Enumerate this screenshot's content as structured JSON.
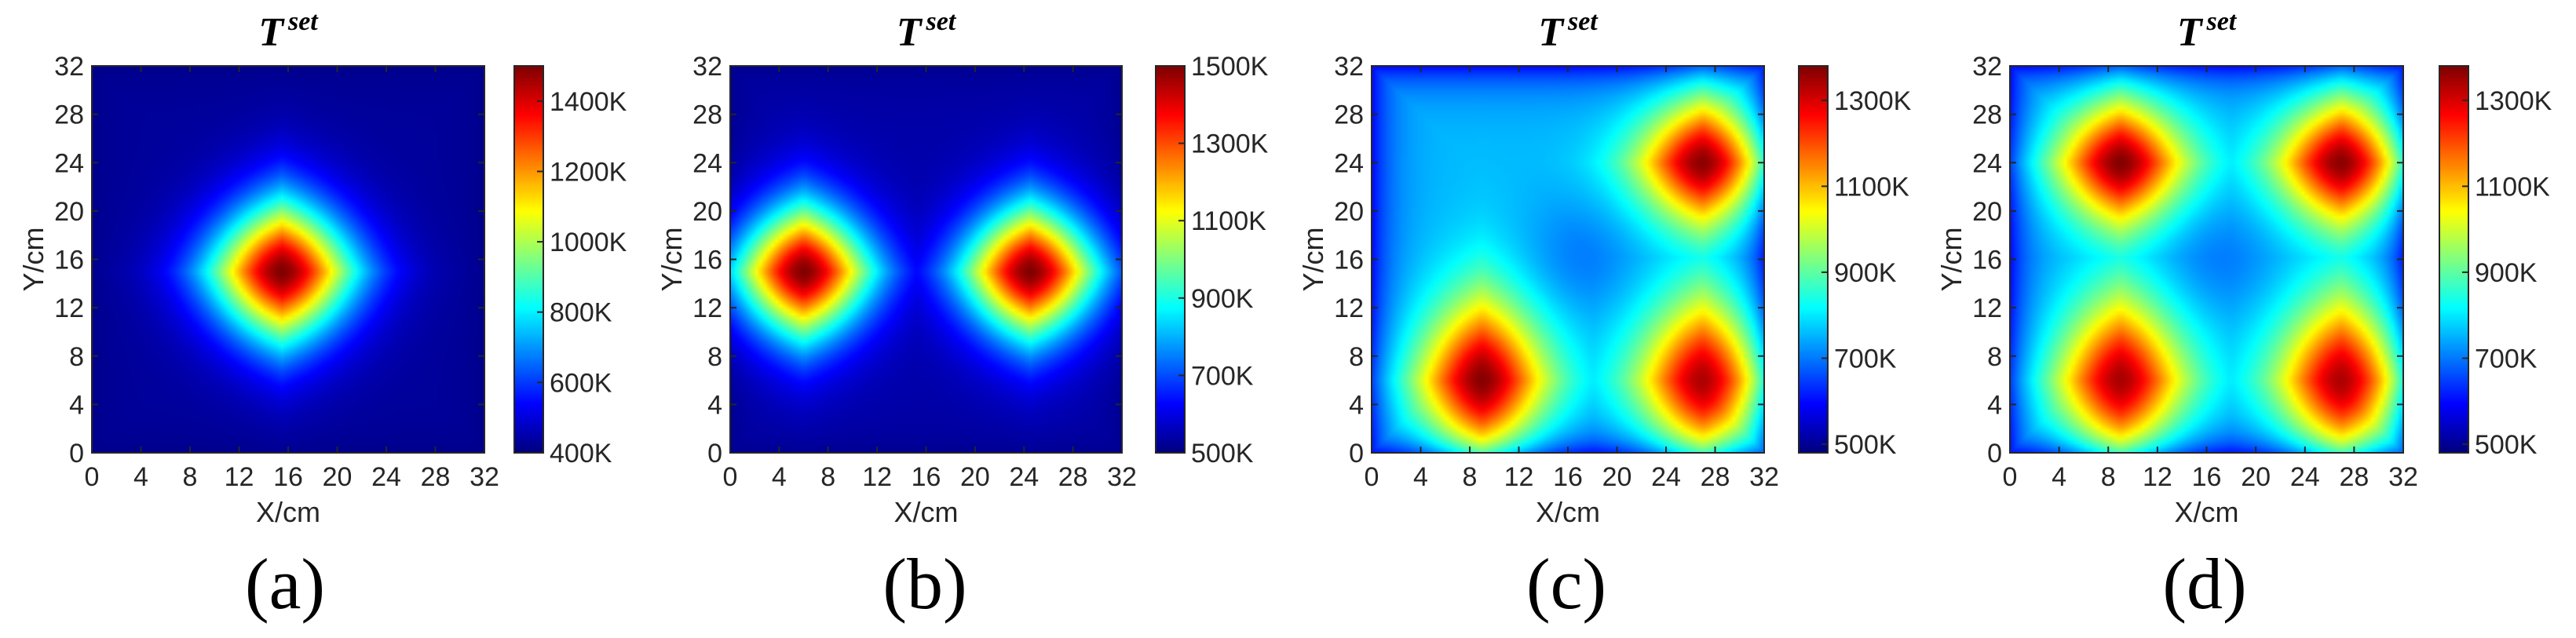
{
  "figure": {
    "panels": [
      "(a)",
      "(b)",
      "(c)",
      "(d)"
    ]
  },
  "chart_data": [
    {
      "type": "heatmap",
      "panel_label": "(a)",
      "title_main": "T",
      "title_sup": "set",
      "xlabel": "X/cm",
      "ylabel": "Y/cm",
      "xlim": [
        0,
        32
      ],
      "ylim": [
        0,
        32
      ],
      "xticks": [
        0,
        4,
        8,
        12,
        16,
        20,
        24,
        28,
        32
      ],
      "yticks": [
        0,
        4,
        8,
        12,
        16,
        20,
        24,
        28,
        32
      ],
      "colormap": "jet",
      "clim": [
        400,
        1500
      ],
      "colorbar_ticks": [
        400,
        600,
        800,
        1000,
        1200,
        1400
      ],
      "colorbar_tick_labels": [
        "400K",
        "600K",
        "800K",
        "1000K",
        "1200K",
        "1400K"
      ],
      "base_temperature": 430,
      "hotspots": [
        {
          "x": 15.5,
          "y": 15,
          "peak": 1500,
          "sx": 3.6,
          "sy": 3.6,
          "falloff": "diamond"
        }
      ]
    },
    {
      "type": "heatmap",
      "panel_label": "(b)",
      "title_main": "T",
      "title_sup": "set",
      "xlabel": "X/cm",
      "ylabel": "Y/cm",
      "xlim": [
        0,
        32
      ],
      "ylim": [
        0,
        32
      ],
      "xticks": [
        0,
        4,
        8,
        12,
        16,
        20,
        24,
        28,
        32
      ],
      "yticks": [
        0,
        4,
        8,
        12,
        16,
        20,
        24,
        28,
        32
      ],
      "colormap": "jet",
      "clim": [
        500,
        1500
      ],
      "colorbar_ticks": [
        500,
        700,
        900,
        1100,
        1300,
        1500
      ],
      "colorbar_tick_labels": [
        "500K",
        "700K",
        "900K",
        "1100K",
        "1300K",
        "1500K"
      ],
      "base_temperature": 540,
      "hotspots": [
        {
          "x": 6,
          "y": 15,
          "peak": 1500,
          "sx": 3.4,
          "sy": 3.4,
          "falloff": "diamond"
        },
        {
          "x": 24.5,
          "y": 15,
          "peak": 1500,
          "sx": 3.4,
          "sy": 3.4,
          "falloff": "diamond"
        }
      ]
    },
    {
      "type": "heatmap",
      "panel_label": "(c)",
      "title_main": "T",
      "title_sup": "set",
      "xlabel": "X/cm",
      "ylabel": "Y/cm",
      "xlim": [
        0,
        32
      ],
      "ylim": [
        0,
        32
      ],
      "xticks": [
        0,
        4,
        8,
        12,
        16,
        20,
        24,
        28,
        32
      ],
      "yticks": [
        0,
        4,
        8,
        12,
        16,
        20,
        24,
        28,
        32
      ],
      "colormap": "jet",
      "clim": [
        480,
        1380
      ],
      "colorbar_ticks": [
        500,
        700,
        900,
        1100,
        1300
      ],
      "colorbar_tick_labels": [
        "500K",
        "700K",
        "900K",
        "1100K",
        "1300K"
      ],
      "base_temperature": 760,
      "cool_center": {
        "x": 17,
        "y": 16,
        "value": 700
      },
      "hotspots": [
        {
          "x": 9,
          "y": 6,
          "peak": 1380,
          "sx": 3.2,
          "sy": 4.2,
          "falloff": "diamond"
        },
        {
          "x": 27,
          "y": 6,
          "peak": 1350,
          "sx": 3.2,
          "sy": 4.2,
          "falloff": "diamond"
        },
        {
          "x": 27,
          "y": 24,
          "peak": 1380,
          "sx": 3.2,
          "sy": 3.2,
          "falloff": "diamond"
        }
      ]
    },
    {
      "type": "heatmap",
      "panel_label": "(d)",
      "title_main": "T",
      "title_sup": "set",
      "xlabel": "X/cm",
      "ylabel": "Y/cm",
      "xlim": [
        0,
        32
      ],
      "ylim": [
        0,
        32
      ],
      "xticks": [
        0,
        4,
        8,
        12,
        16,
        20,
        24,
        28,
        32
      ],
      "yticks": [
        0,
        4,
        8,
        12,
        16,
        20,
        24,
        28,
        32
      ],
      "colormap": "jet",
      "clim": [
        480,
        1380
      ],
      "colorbar_ticks": [
        500,
        700,
        900,
        1100,
        1300
      ],
      "colorbar_tick_labels": [
        "500K",
        "700K",
        "900K",
        "1100K",
        "1300K"
      ],
      "base_temperature": 760,
      "cool_center": {
        "x": 17,
        "y": 16,
        "value": 700
      },
      "hotspots": [
        {
          "x": 9,
          "y": 6,
          "peak": 1350,
          "sx": 3.2,
          "sy": 4.2,
          "falloff": "diamond"
        },
        {
          "x": 27,
          "y": 6,
          "peak": 1350,
          "sx": 3.2,
          "sy": 4.2,
          "falloff": "diamond"
        },
        {
          "x": 9,
          "y": 24,
          "peak": 1380,
          "sx": 3.2,
          "sy": 3.2,
          "falloff": "diamond"
        },
        {
          "x": 27,
          "y": 24,
          "peak": 1380,
          "sx": 3.2,
          "sy": 3.2,
          "falloff": "diamond"
        }
      ]
    }
  ]
}
